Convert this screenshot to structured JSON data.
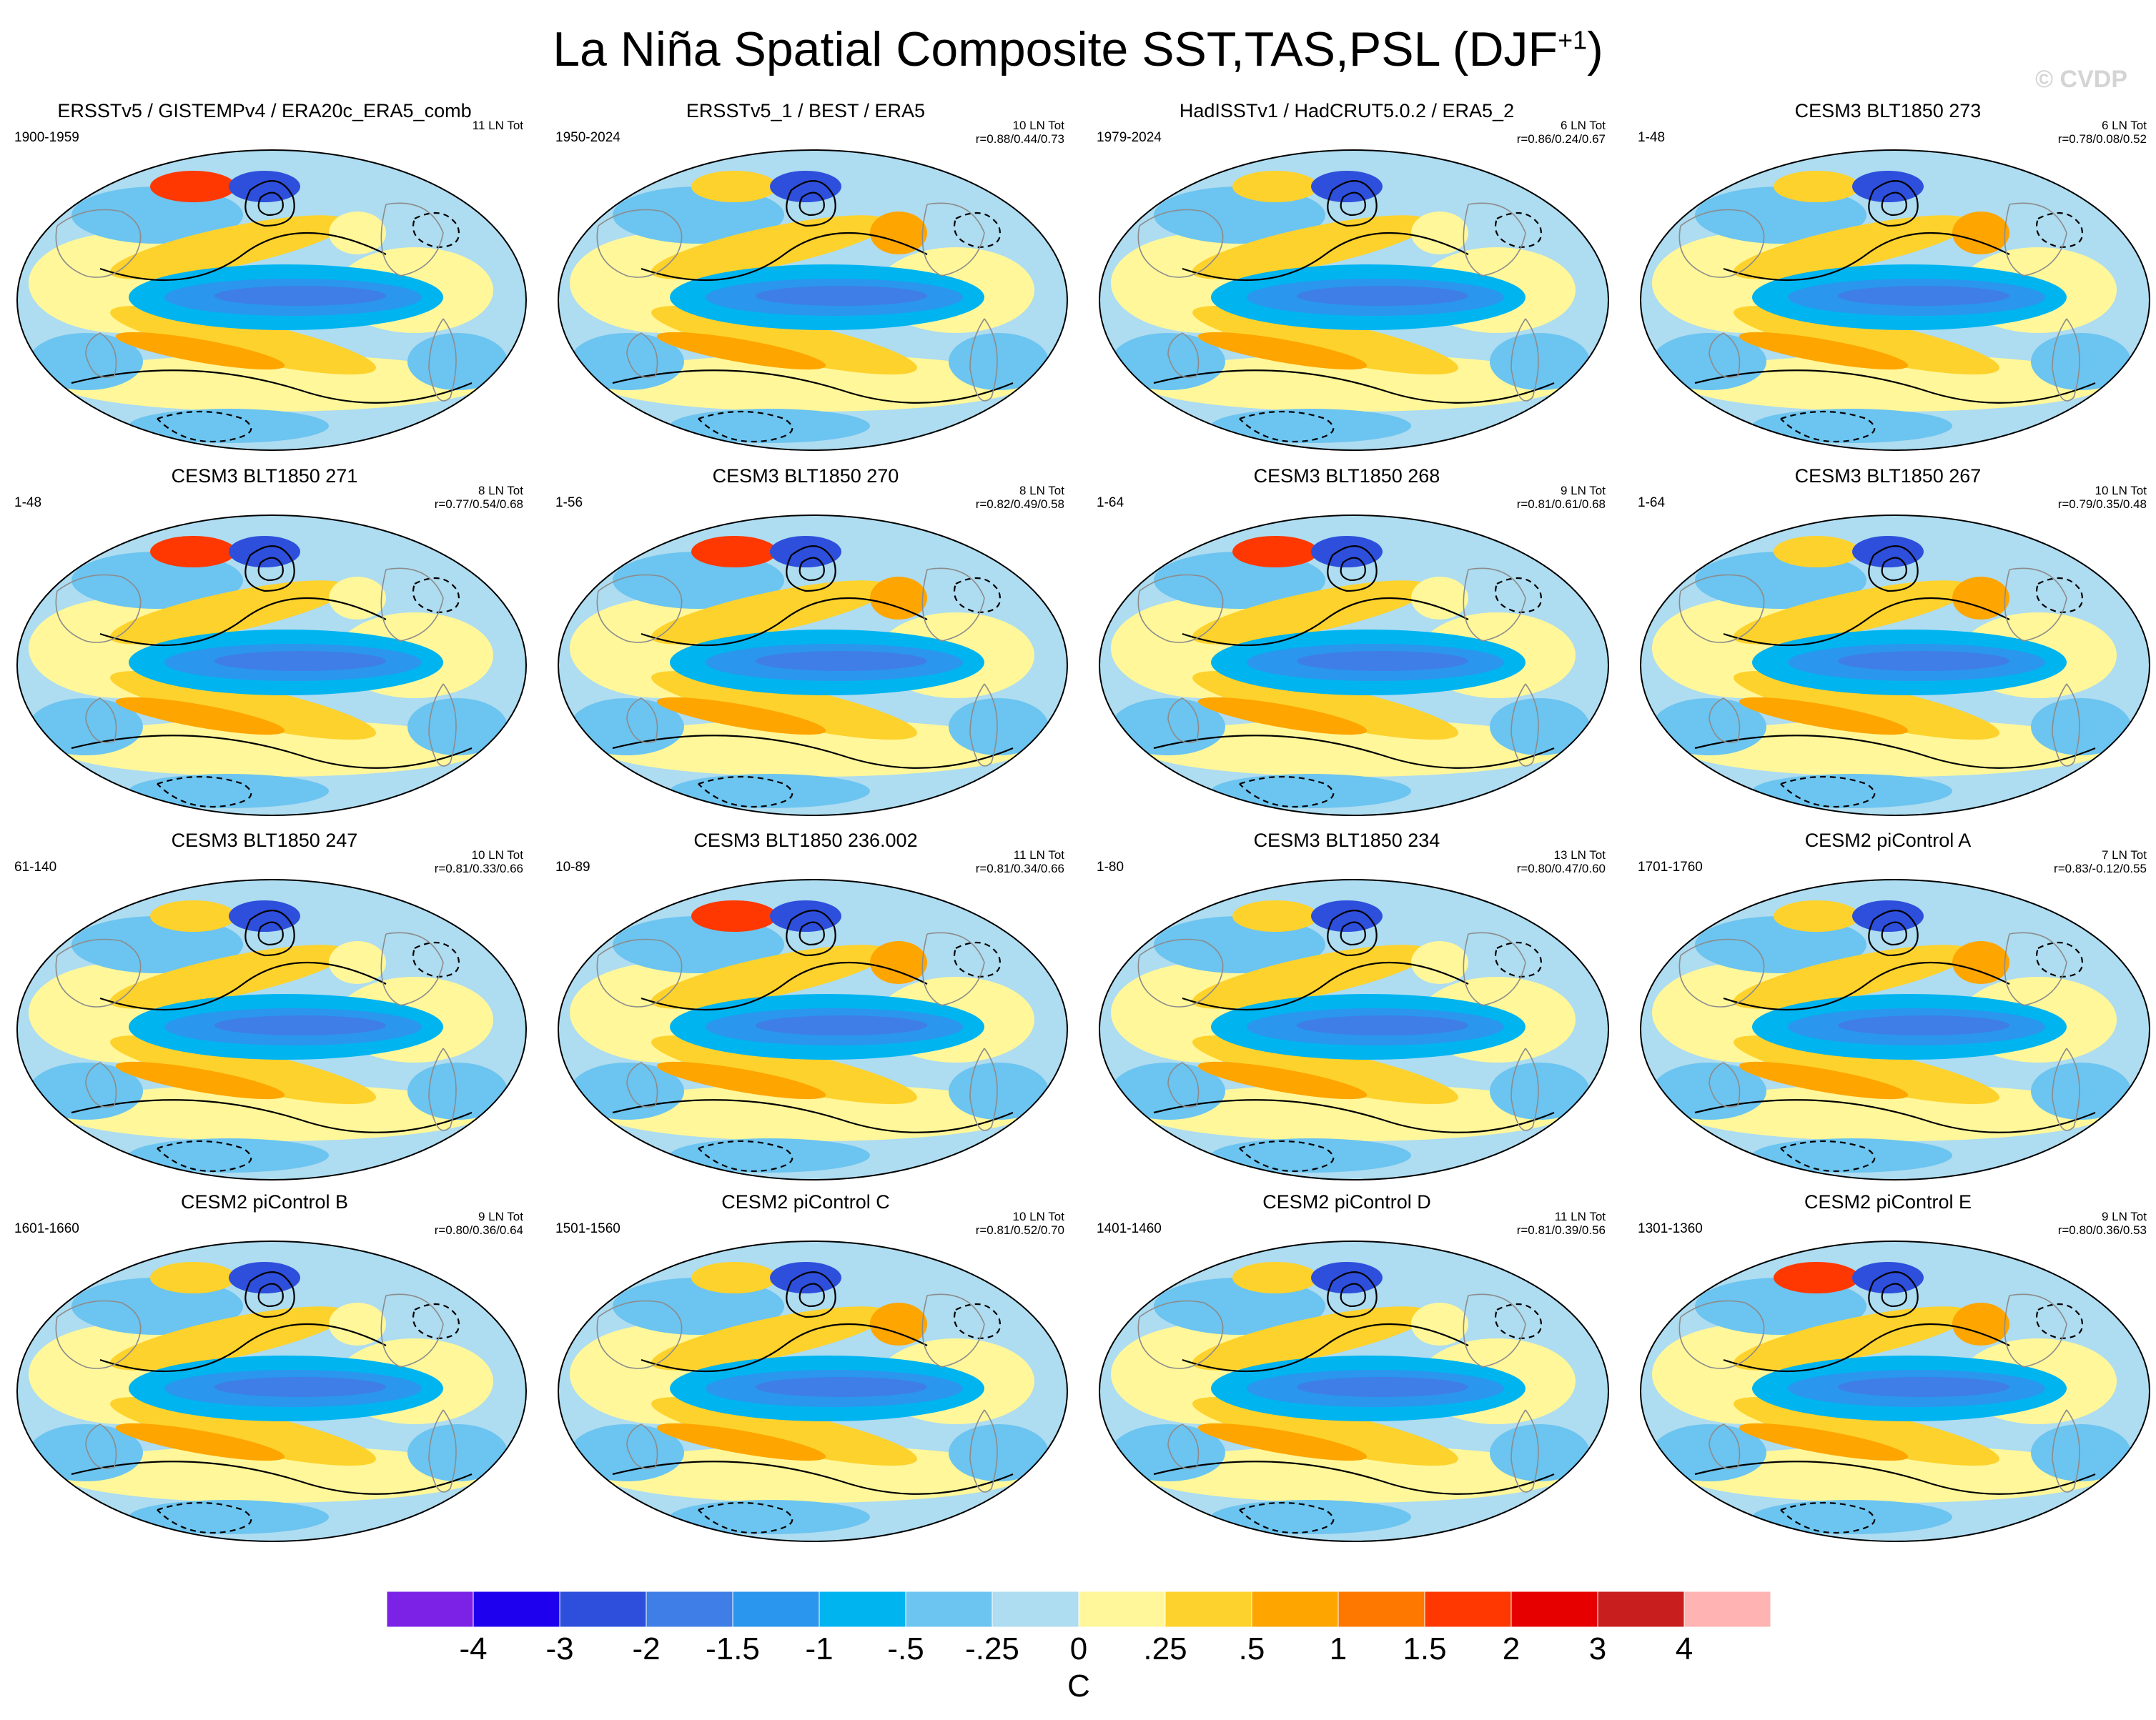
{
  "figure": {
    "title_main": "La Niña Spatial Composite SST,TAS,PSL (DJF",
    "title_superscript": "+1",
    "title_close": ")",
    "watermark": "© CVDP"
  },
  "panels": [
    {
      "title": "ERSSTv5 / GISTEMPv4 / ERA20c_ERA5_comb",
      "years": "1900-1959",
      "count": "11 LN Tot",
      "corr": ""
    },
    {
      "title": "ERSSTv5_1 / BEST / ERA5",
      "years": "1950-2024",
      "count": "10 LN Tot",
      "corr": "r=0.88/0.44/0.73"
    },
    {
      "title": "HadISSTv1 / HadCRUT5.0.2 / ERA5_2",
      "years": "1979-2024",
      "count": "6 LN Tot",
      "corr": "r=0.86/0.24/0.67"
    },
    {
      "title": "CESM3 BLT1850 273",
      "years": "1-48",
      "count": "6 LN Tot",
      "corr": "r=0.78/0.08/0.52"
    },
    {
      "title": "CESM3 BLT1850 271",
      "years": "1-48",
      "count": "8 LN Tot",
      "corr": "r=0.77/0.54/0.68"
    },
    {
      "title": "CESM3 BLT1850 270",
      "years": "1-56",
      "count": "8 LN Tot",
      "corr": "r=0.82/0.49/0.58"
    },
    {
      "title": "CESM3 BLT1850 268",
      "years": "1-64",
      "count": "9 LN Tot",
      "corr": "r=0.81/0.61/0.68"
    },
    {
      "title": "CESM3 BLT1850 267",
      "years": "1-64",
      "count": "10 LN Tot",
      "corr": "r=0.79/0.35/0.48"
    },
    {
      "title": "CESM3 BLT1850 247",
      "years": "61-140",
      "count": "10 LN Tot",
      "corr": "r=0.81/0.33/0.66"
    },
    {
      "title": "CESM3 BLT1850 236.002",
      "years": "10-89",
      "count": "11 LN Tot",
      "corr": "r=0.81/0.34/0.66"
    },
    {
      "title": "CESM3 BLT1850 234",
      "years": "1-80",
      "count": "13 LN Tot",
      "corr": "r=0.80/0.47/0.60"
    },
    {
      "title": "CESM2 piControl A",
      "years": "1701-1760",
      "count": "7 LN Tot",
      "corr": "r=0.83/-0.12/0.55"
    },
    {
      "title": "CESM2 piControl B",
      "years": "1601-1660",
      "count": "9 LN Tot",
      "corr": "r=0.80/0.36/0.64"
    },
    {
      "title": "CESM2 piControl C",
      "years": "1501-1560",
      "count": "10 LN Tot",
      "corr": "r=0.81/0.52/0.70"
    },
    {
      "title": "CESM2 piControl D",
      "years": "1401-1460",
      "count": "11 LN Tot",
      "corr": "r=0.81/0.39/0.56"
    },
    {
      "title": "CESM2 piControl E",
      "years": "1301-1360",
      "count": "9 LN Tot",
      "corr": "r=0.80/0.36/0.53"
    }
  ],
  "colorbar": {
    "labels": [
      "-4",
      "-3",
      "-2",
      "-1.5",
      "-1",
      "-.5",
      "-.25",
      "0",
      ".25",
      ".5",
      "1",
      "1.5",
      "2",
      "3",
      "4"
    ],
    "colors": [
      "#7b22e6",
      "#1f00ee",
      "#2d4fdc",
      "#3f7ee6",
      "#2a96ee",
      "#00b4f0",
      "#6cc4f0",
      "#aedcf0",
      "#fff79a",
      "#fed22c",
      "#fea500",
      "#fe7800",
      "#fe3800",
      "#e60000",
      "#c81e1e",
      "#ffb3b3"
    ],
    "units": "C"
  }
}
